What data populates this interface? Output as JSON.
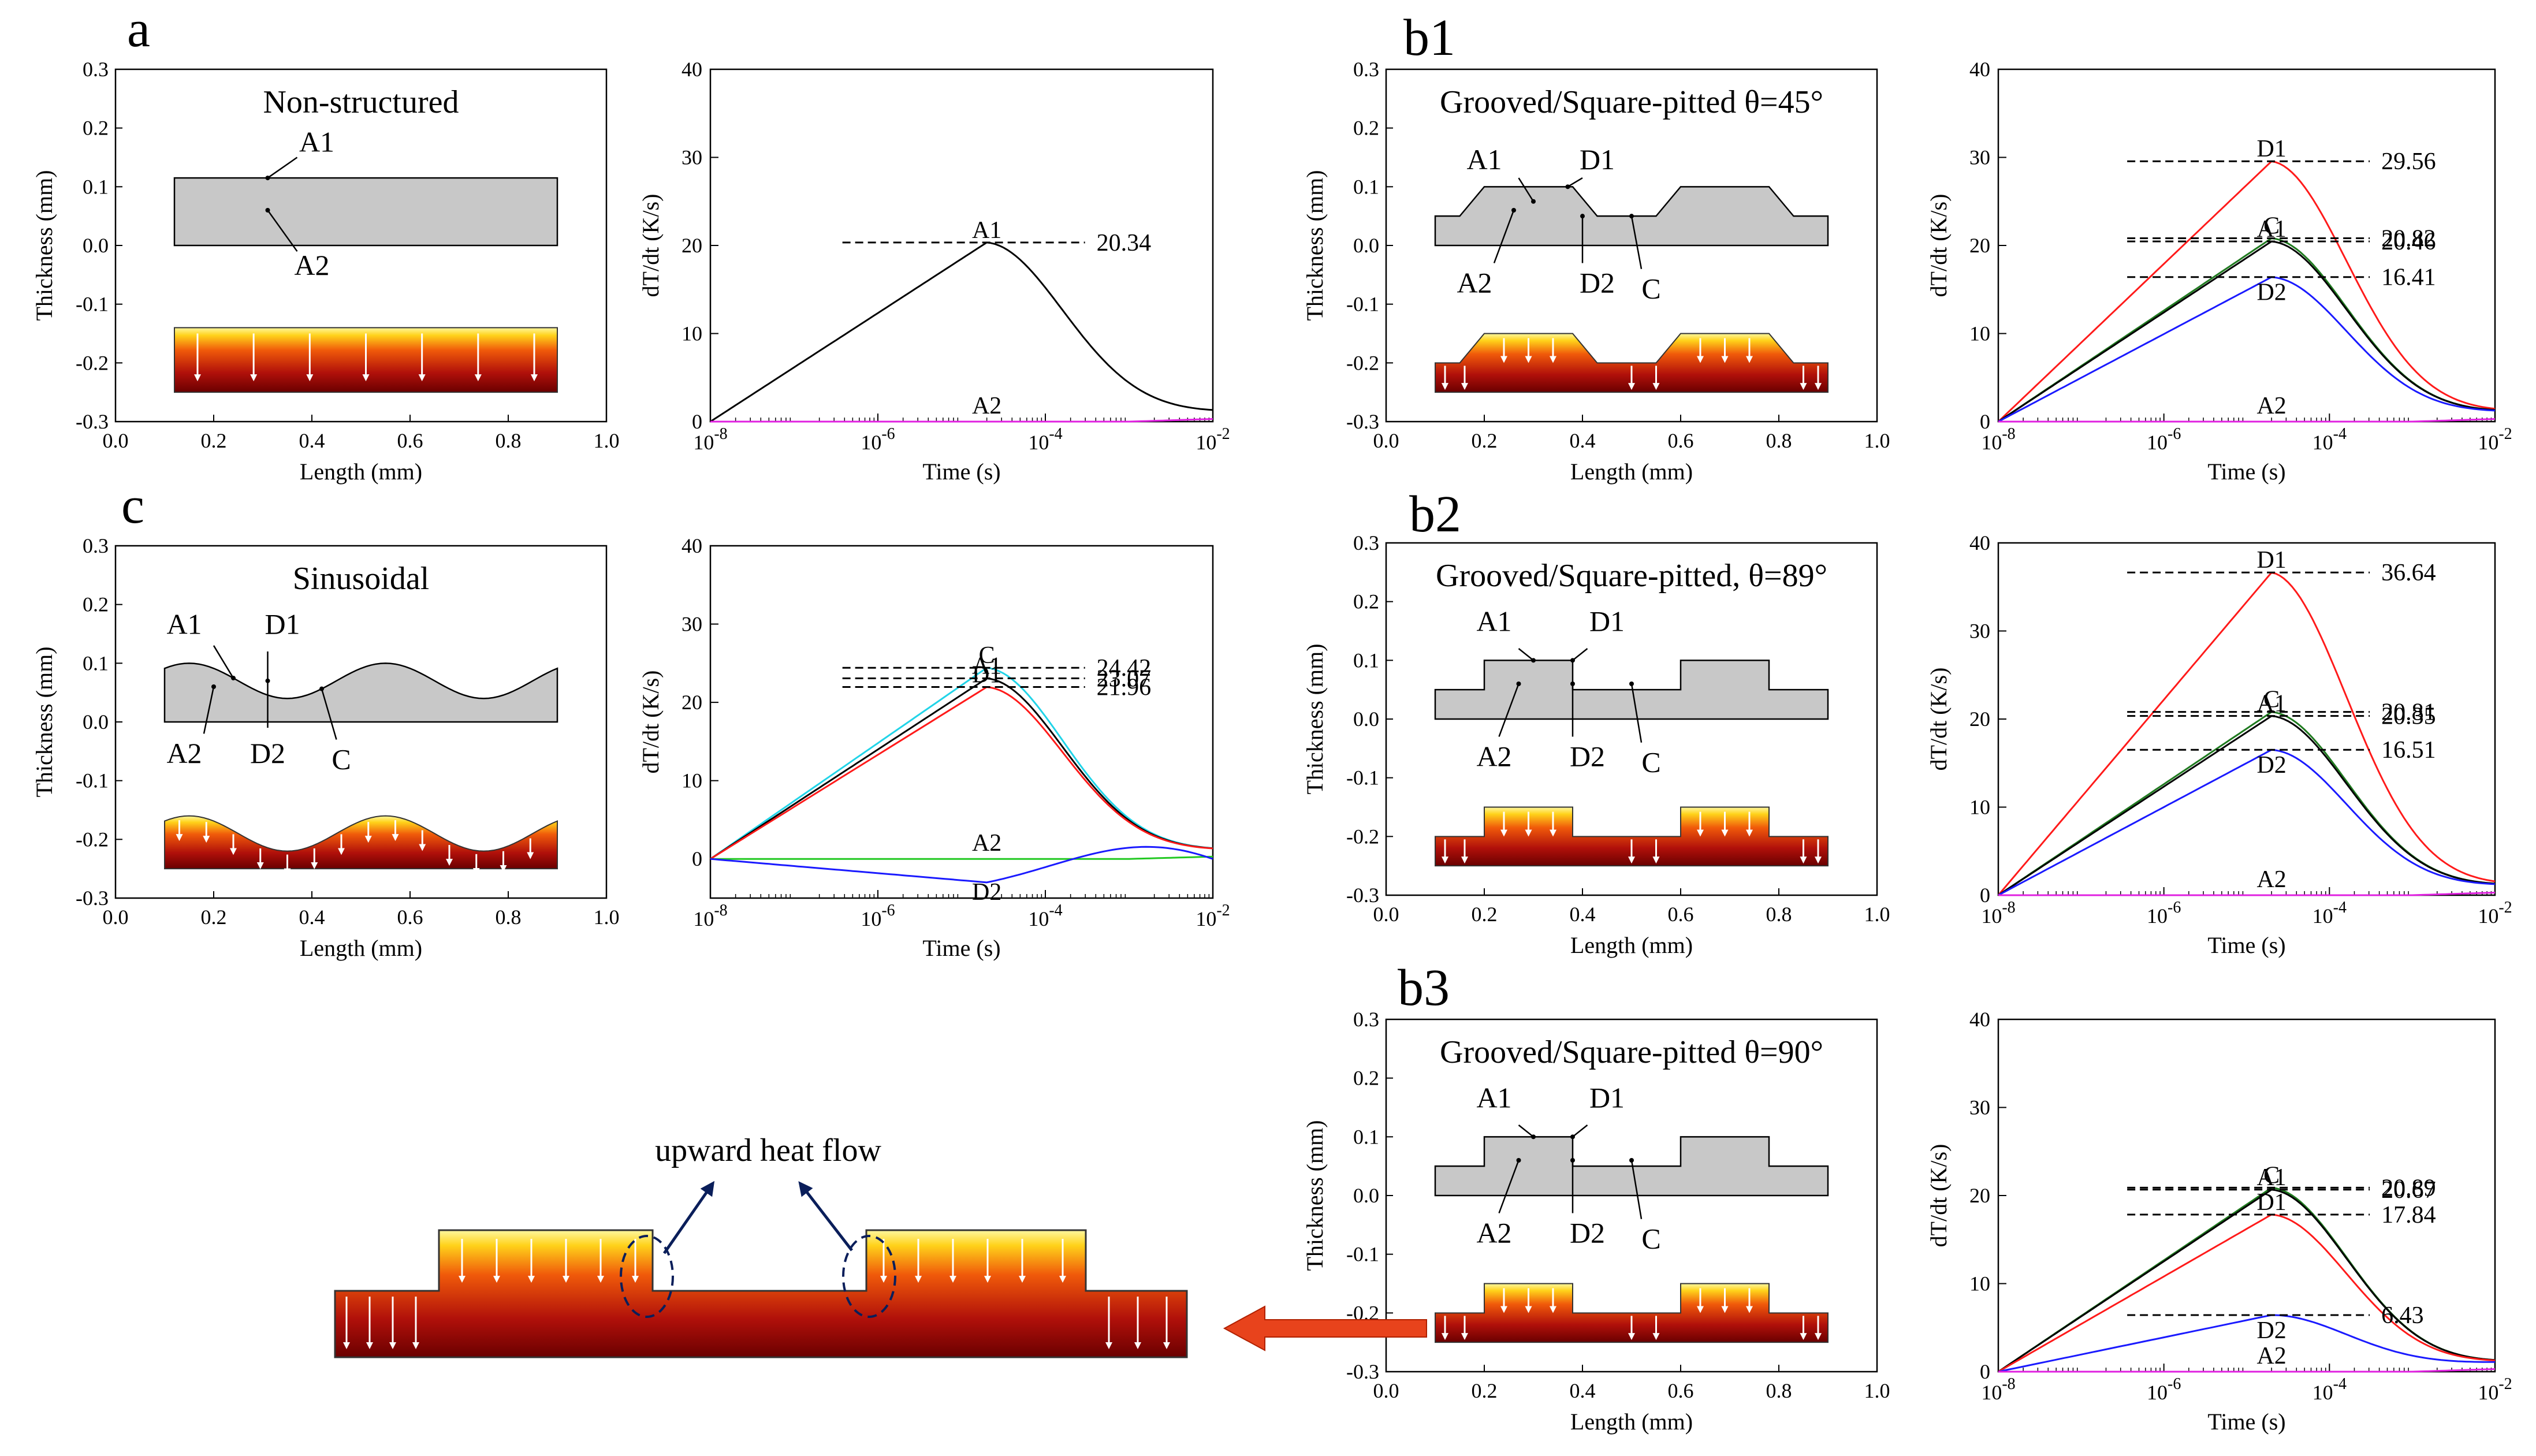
{
  "panels": {
    "a": "a",
    "b1": "b1",
    "b2": "b2",
    "b3": "b3",
    "c": "c"
  },
  "titles": {
    "a": "Non-structured",
    "b1": "Grooved/Square-pitted θ=45°",
    "b2": "Grooved/Square-pitted, θ=89°",
    "b3": "Grooved/Square-pitted θ=90°",
    "c": "Sinusoidal"
  },
  "points": {
    "A1": "A1",
    "A2": "A2",
    "C": "C",
    "D1": "D1",
    "D2": "D2"
  },
  "geom_axes": {
    "xlabel": "Length (mm)",
    "ylabel": "Thickness (mm)",
    "xticks": [
      "0.0",
      "0.2",
      "0.4",
      "0.6",
      "0.8",
      "1.0"
    ],
    "yticks": [
      "0.3",
      "0.2",
      "0.1",
      "0.0",
      "-0.1",
      "-0.2",
      "-0.3"
    ],
    "xlim": [
      0.0,
      1.0
    ],
    "ylim": [
      -0.3,
      0.3
    ]
  },
  "rate_axes": {
    "xlabel": "Time (s)",
    "ylabel_a": "dT/dt (K/s)",
    "ylabel_b": "dT/dt (K/s)",
    "ylabel_c": "dT/dt (K/s)",
    "yticks": [
      "0",
      "10",
      "20",
      "30",
      "40"
    ],
    "xtick_base": "10",
    "xtick_exps": [
      "-8",
      "-6",
      "-4",
      "-2"
    ],
    "ylim": [
      0,
      40
    ]
  },
  "inset": {
    "caption": "upward heat flow"
  },
  "colors": {
    "A1": "#000000",
    "A2": "#e020e0",
    "C": "#1f7a1f",
    "D1": "#ff1a1a",
    "D2": "#1a1aff",
    "C_sin": "#21d4e8",
    "A2_sin": "#21c821",
    "arrow": "#e8431c"
  },
  "chart_data": [
    {
      "id": "a",
      "type": "line",
      "xscale": "log",
      "xlabel": "Time (s)",
      "ylabel": "dT/dt (K/s)",
      "xlim": [
        1e-08,
        0.01
      ],
      "ylim": [
        0,
        40
      ],
      "series": [
        {
          "name": "A1",
          "peak": 20.34,
          "peak_label": "20.34",
          "profile": "rise"
        },
        {
          "name": "A2",
          "peak": 0,
          "profile": "flat"
        }
      ]
    },
    {
      "id": "b1",
      "type": "line",
      "xscale": "log",
      "xlabel": "Time (s)",
      "ylabel": "dT/dt (K/s)",
      "xlim": [
        1e-08,
        0.01
      ],
      "ylim": [
        0,
        40
      ],
      "series": [
        {
          "name": "D1",
          "peak": 29.56,
          "peak_label": "29.56",
          "profile": "rise"
        },
        {
          "name": "C",
          "peak": 20.82,
          "peak_label": "20.82",
          "profile": "rise"
        },
        {
          "name": "A1",
          "peak": 20.46,
          "peak_label": "20.46",
          "profile": "rise"
        },
        {
          "name": "D2",
          "peak": 16.41,
          "peak_label": "16.41",
          "profile": "rise"
        },
        {
          "name": "A2",
          "peak": 0,
          "profile": "flat"
        }
      ]
    },
    {
      "id": "b2",
      "type": "line",
      "xscale": "log",
      "xlabel": "Time (s)",
      "ylabel": "dT/dt (K/s)",
      "xlim": [
        1e-08,
        0.01
      ],
      "ylim": [
        0,
        40
      ],
      "series": [
        {
          "name": "D1",
          "peak": 36.64,
          "peak_label": "36.64",
          "profile": "rise"
        },
        {
          "name": "C",
          "peak": 20.81,
          "peak_label": "20.81",
          "profile": "rise"
        },
        {
          "name": "A1",
          "peak": 20.35,
          "peak_label": "20.35",
          "profile": "rise"
        },
        {
          "name": "D2",
          "peak": 16.51,
          "peak_label": "16.51",
          "profile": "rise"
        },
        {
          "name": "A2",
          "peak": 0,
          "profile": "flat"
        }
      ]
    },
    {
      "id": "b3",
      "type": "line",
      "xscale": "log",
      "xlabel": "Time (s)",
      "ylabel": "dT/dt (K/s)",
      "xlim": [
        1e-08,
        0.01
      ],
      "ylim": [
        0,
        40
      ],
      "series": [
        {
          "name": "C",
          "peak": 20.89,
          "peak_label": "20.89",
          "profile": "rise"
        },
        {
          "name": "A1",
          "peak": 20.67,
          "peak_label": "20.67",
          "profile": "rise"
        },
        {
          "name": "D1",
          "peak": 17.84,
          "peak_label": "17.84",
          "profile": "rise"
        },
        {
          "name": "D2",
          "peak": 6.43,
          "peak_label": "6.43",
          "profile": "rise"
        },
        {
          "name": "A2",
          "peak": 0,
          "profile": "flat"
        }
      ]
    },
    {
      "id": "c",
      "type": "line",
      "xscale": "log",
      "xlabel": "Time (s)",
      "ylabel": "dT/dt (K/s)",
      "xlim": [
        1e-08,
        0.01
      ],
      "ylim": [
        -5,
        40
      ],
      "series": [
        {
          "name": "C",
          "peak": 24.42,
          "peak_label": "24.42",
          "profile": "rise"
        },
        {
          "name": "A1",
          "peak": 23.07,
          "peak_label": "23.07",
          "profile": "rise"
        },
        {
          "name": "D1",
          "peak": 21.96,
          "peak_label": "21.96",
          "profile": "rise"
        },
        {
          "name": "A2",
          "peak": 0,
          "profile": "flat"
        },
        {
          "name": "D2",
          "peak": -3,
          "profile": "dip"
        }
      ]
    }
  ]
}
